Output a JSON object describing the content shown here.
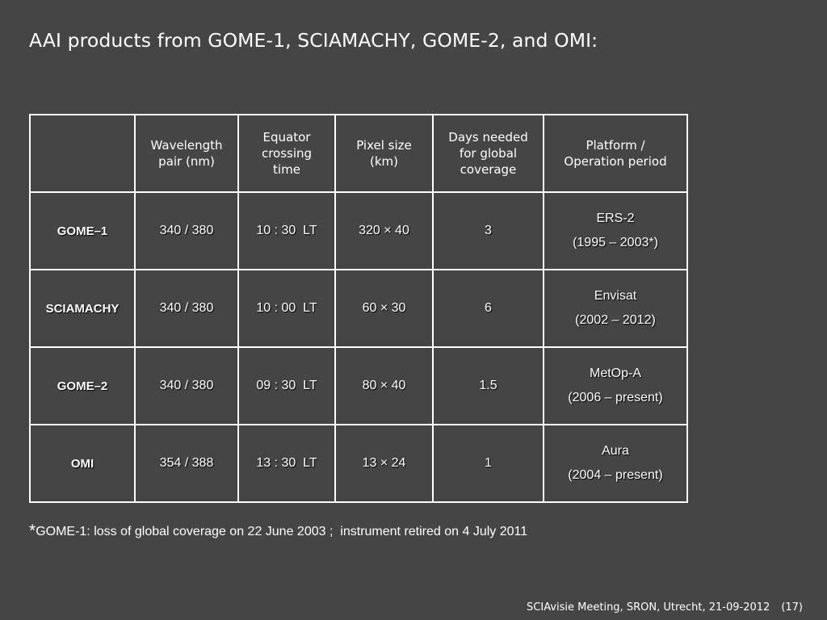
{
  "title": "AAI products from GOME-1, SCIAMACHY, GOME-2, and OMI:",
  "table": {
    "headers": [
      [
        "Wavelength",
        "pair (nm)"
      ],
      [
        "Equator",
        "crossing",
        "time"
      ],
      [
        "Pixel size",
        "(km)"
      ],
      [
        "Days needed",
        "for global",
        "coverage"
      ],
      [
        "Platform /",
        "Operation period"
      ]
    ],
    "rows": [
      {
        "instrument": "GOME–1",
        "wavelength": "340 / 380",
        "equator_time": "10 : 30  LT",
        "pixel_size": "320 × 40",
        "days": "3",
        "platform": "ERS-2",
        "period": "(1995 – 2003*)"
      },
      {
        "instrument": "SCIAMACHY",
        "wavelength": "340 / 380",
        "equator_time": "10 : 00  LT",
        "pixel_size": "60 × 30",
        "days": "6",
        "platform": "Envisat",
        "period": "(2002 – 2012)"
      },
      {
        "instrument": "GOME–2",
        "wavelength": "340 / 380",
        "equator_time": "09 : 30  LT",
        "pixel_size": "80 × 40",
        "days": "1.5",
        "platform": "MetOp-A",
        "period": "(2006 – present)"
      },
      {
        "instrument": "OMI",
        "wavelength": "354 / 388",
        "equator_time": "13 : 30  LT",
        "pixel_size": "13 × 24",
        "days": "1",
        "platform": "Aura",
        "period": "(2004 – present)"
      }
    ]
  },
  "footnote": {
    "marker": "*",
    "text": "GOME-1: loss of global coverage on 22 June 2003 ;  instrument retired on 4 July 2011"
  },
  "footer": {
    "meeting": "SCIAvisie Meeting, SRON, Utrecht, 21-09-2012",
    "page": "(17)"
  },
  "colors": {
    "background": "#454545",
    "text": "#ffffff",
    "border": "#ffffff"
  }
}
